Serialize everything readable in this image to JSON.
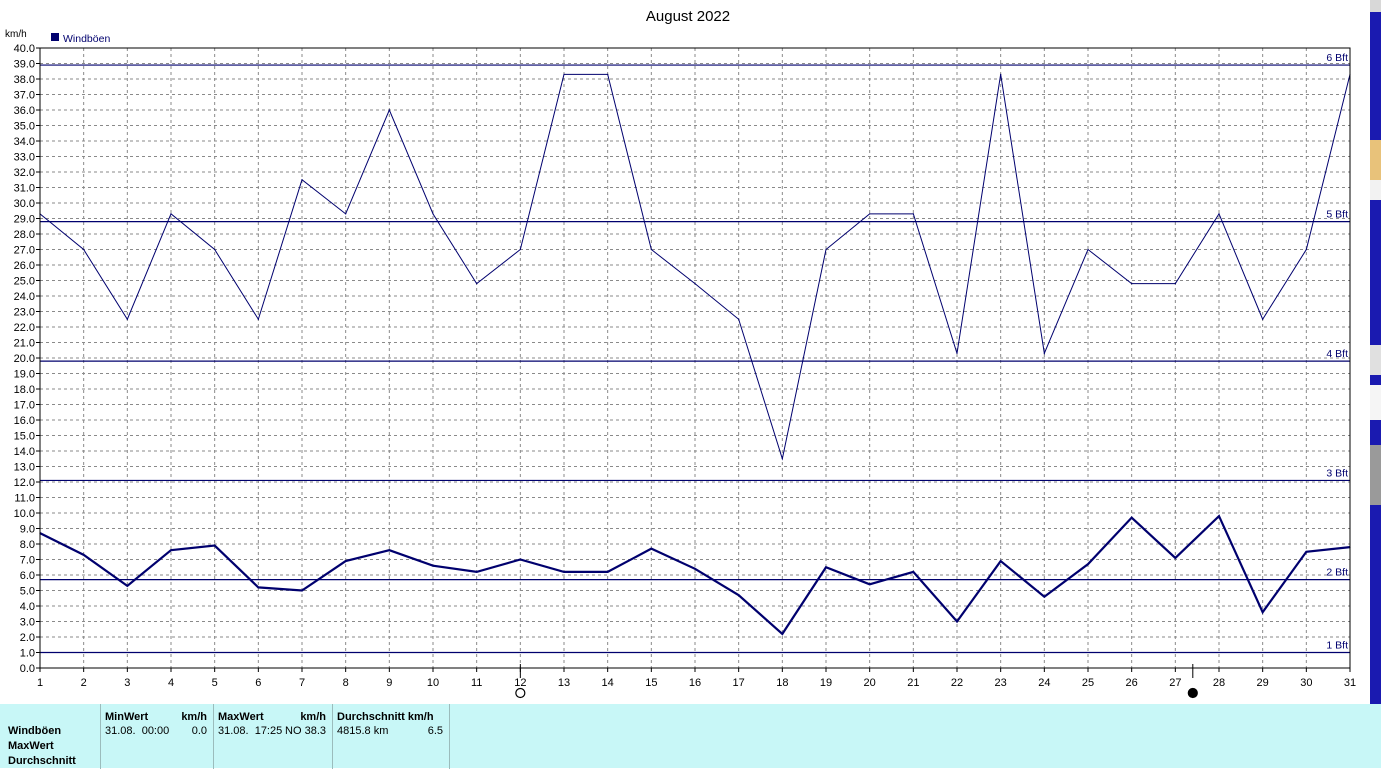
{
  "chart_data": {
    "type": "line",
    "title": "August 2022",
    "ylabel": "km/h",
    "legend": {
      "label": "Windböen",
      "placement": "top-left",
      "color": "#00006e"
    },
    "x": [
      1,
      2,
      3,
      4,
      5,
      6,
      7,
      8,
      9,
      10,
      11,
      12,
      13,
      14,
      15,
      16,
      17,
      18,
      19,
      20,
      21,
      22,
      23,
      24,
      25,
      26,
      27,
      28,
      29,
      30,
      31
    ],
    "xlim": [
      1,
      31
    ],
    "ylim": [
      0,
      40
    ],
    "ytick_step": 1,
    "grid": true,
    "series": [
      {
        "name": "Windböen",
        "style": "thin",
        "values": [
          29.3,
          27.0,
          22.5,
          29.3,
          27.0,
          22.5,
          31.5,
          29.3,
          36.0,
          29.3,
          24.8,
          27.0,
          38.3,
          38.3,
          27.0,
          24.8,
          22.5,
          13.5,
          27.0,
          29.3,
          29.3,
          20.3,
          38.3,
          20.3,
          27.0,
          24.8,
          24.8,
          29.3,
          22.5,
          27.0,
          38.3
        ]
      },
      {
        "name": "",
        "style": "thick",
        "values": [
          8.7,
          7.3,
          5.3,
          7.6,
          7.9,
          5.2,
          5.0,
          6.9,
          7.6,
          6.6,
          6.2,
          7.0,
          6.2,
          6.2,
          7.7,
          6.4,
          4.7,
          2.2,
          6.5,
          5.4,
          6.2,
          3.0,
          6.9,
          4.6,
          6.7,
          9.7,
          7.1,
          9.8,
          3.6,
          7.5,
          7.8
        ]
      }
    ],
    "reference_lines": [
      {
        "label": "6 Bft",
        "value": 38.9
      },
      {
        "label": "5 Bft",
        "value": 28.8
      },
      {
        "label": "4 Bft",
        "value": 19.8
      },
      {
        "label": "3 Bft",
        "value": 12.1
      },
      {
        "label": "2 Bft",
        "value": 5.7
      },
      {
        "label": "1 Bft",
        "value": 1.0
      }
    ],
    "moon_markers": [
      {
        "day": 12,
        "phase": "full-moon-icon"
      },
      {
        "day": 27.4,
        "phase": "new-moon-icon"
      }
    ]
  },
  "stats": {
    "row_labels": [
      "Windböen",
      "MaxWert",
      "Durchschnitt"
    ],
    "min": {
      "header": "MinWert",
      "unit": "km/h",
      "time": "31.08.  00:00",
      "value": "0.0"
    },
    "max": {
      "header": "MaxWert",
      "unit": "km/h",
      "time": "31.08.  17:25",
      "dir_value": "NO 38.3"
    },
    "avg": {
      "header": "Durchschnitt km/h",
      "distance": "4815.8 km",
      "value": "6.5"
    }
  }
}
